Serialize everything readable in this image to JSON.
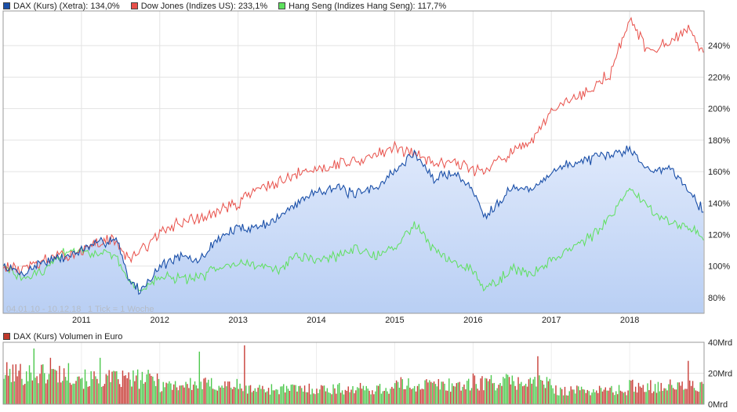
{
  "legend": {
    "dax": {
      "label": "DAX (Kurs) (Xetra): 134,0%",
      "color": "#1a4fa8"
    },
    "dow": {
      "label": "Dow Jones (Indizes US): 233,1%",
      "color": "#e8504a"
    },
    "hang": {
      "label": "Hang Seng (Indizes Hang Seng): 117,7%",
      "color": "#5ee05e"
    }
  },
  "volume_legend": {
    "label": "DAX (Kurs) Volumen in Euro",
    "color": "#c0392b"
  },
  "range_note": "04.01.10 - 10.12.18",
  "tick_note": "1 Tick = 1 Woche",
  "chart_data": {
    "type": "line",
    "title": "",
    "x": [
      2010.0,
      2010.25,
      2010.5,
      2010.75,
      2011.0,
      2011.25,
      2011.45,
      2011.6,
      2011.75,
      2012.0,
      2012.25,
      2012.5,
      2012.75,
      2013.0,
      2013.25,
      2013.5,
      2013.75,
      2014.0,
      2014.25,
      2014.5,
      2014.75,
      2015.0,
      2015.25,
      2015.5,
      2015.75,
      2016.0,
      2016.15,
      2016.5,
      2016.75,
      2017.0,
      2017.25,
      2017.5,
      2017.75,
      2018.0,
      2018.25,
      2018.5,
      2018.75,
      2018.95
    ],
    "series": [
      {
        "name": "DAX (Kurs) (Xetra)",
        "values": [
          100,
          95,
          103,
          105,
          110,
          115,
          118,
          92,
          84,
          100,
          106,
          103,
          118,
          124,
          125,
          130,
          140,
          148,
          150,
          145,
          150,
          160,
          172,
          155,
          160,
          148,
          132,
          150,
          148,
          160,
          165,
          168,
          170,
          175,
          160,
          163,
          150,
          134
        ]
      },
      {
        "name": "Dow Jones (Indizes US)",
        "values": [
          100,
          98,
          103,
          106,
          110,
          115,
          117,
          103,
          110,
          120,
          128,
          130,
          135,
          140,
          150,
          152,
          158,
          162,
          165,
          167,
          170,
          175,
          172,
          165,
          168,
          160,
          162,
          172,
          178,
          198,
          205,
          212,
          222,
          257,
          235,
          242,
          250,
          233
        ]
      },
      {
        "name": "Hang Seng (Indizes Hang Seng)",
        "values": [
          100,
          92,
          96,
          108,
          110,
          108,
          105,
          90,
          85,
          93,
          92,
          92,
          100,
          103,
          100,
          98,
          106,
          104,
          106,
          111,
          107,
          110,
          128,
          110,
          103,
          98,
          85,
          98,
          95,
          104,
          112,
          118,
          130,
          150,
          137,
          128,
          125,
          118
        ]
      }
    ],
    "xlabel": "",
    "ylabel": "",
    "x_ticks": [
      "2011",
      "2012",
      "2013",
      "2014",
      "2015",
      "2016",
      "2017",
      "2018"
    ],
    "y_ticks": [
      "80%",
      "100%",
      "120%",
      "140%",
      "160%",
      "180%",
      "200%",
      "220%",
      "240%"
    ],
    "ylim": [
      70,
      262
    ],
    "xlim": [
      2010.0,
      2018.95
    ],
    "volume": {
      "label": "DAX (Kurs) Volumen in Euro",
      "y_ticks": [
        "0Mrd",
        "20Mrd",
        "40Mrd"
      ],
      "ylim": [
        0,
        40
      ],
      "weeks": 466,
      "typical_mrd": [
        22,
        18,
        14,
        11,
        11,
        14,
        16,
        10,
        13
      ],
      "spike_weeks": [
        [
          20,
          36
        ],
        [
          31,
          30
        ],
        [
          64,
          30
        ],
        [
          130,
          34
        ],
        [
          160,
          38
        ],
        [
          355,
          31
        ],
        [
          455,
          28
        ]
      ]
    }
  }
}
